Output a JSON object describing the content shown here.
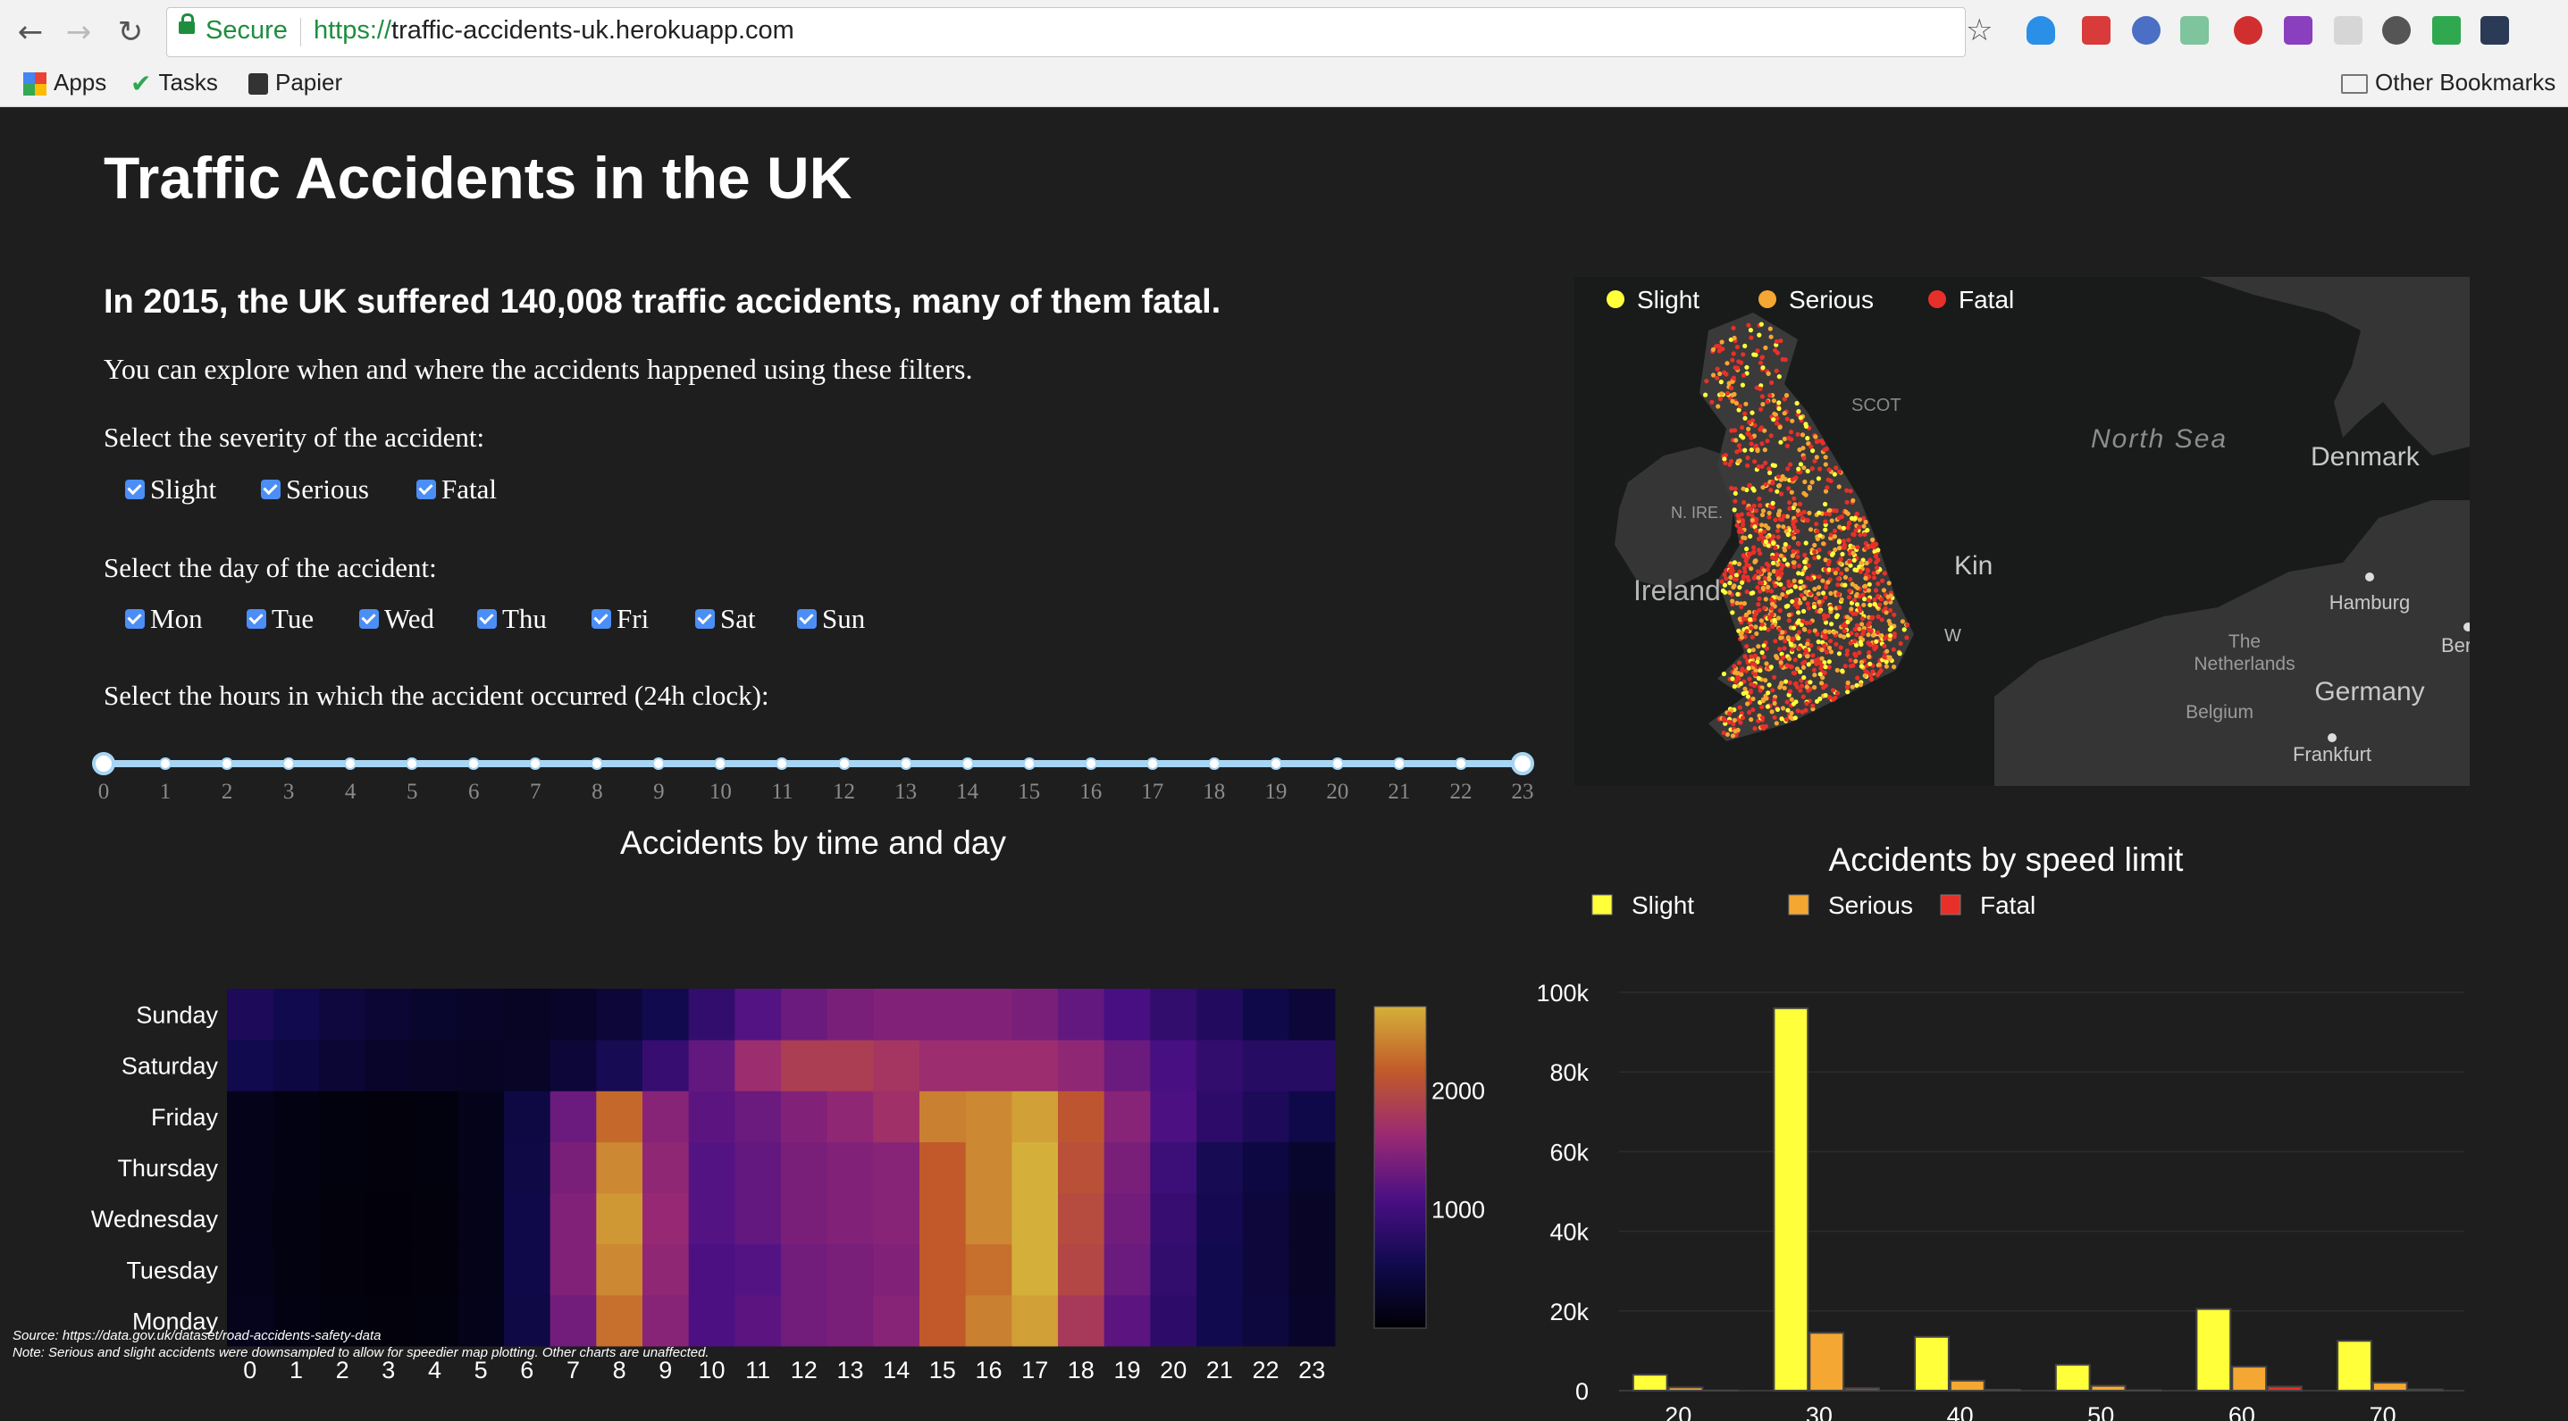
{
  "browser": {
    "secure_label": "Secure",
    "url_scheme": "https://",
    "url_host": "traffic-accidents-uk.herokuapp.com",
    "bookmarks": [
      "Apps",
      "Tasks",
      "Papier"
    ],
    "other_bookmarks": "Other Bookmarks"
  },
  "page": {
    "title": "Traffic Accidents in the UK",
    "headline": "In 2015, the UK suffered 140,008 traffic accidents, many of them fatal.",
    "intro": "You can explore when and where the accidents happened using these filters.",
    "severity_label": "Select the severity of the accident:",
    "severity_options": [
      "Slight",
      "Serious",
      "Fatal"
    ],
    "day_label": "Select the day of the accident:",
    "day_options": [
      "Mon",
      "Tue",
      "Wed",
      "Thu",
      "Fri",
      "Sat",
      "Sun"
    ],
    "hours_label": "Select the hours in which the accident occurred (24h clock):",
    "hour_marks": [
      "0",
      "1",
      "2",
      "3",
      "4",
      "5",
      "6",
      "7",
      "8",
      "9",
      "10",
      "11",
      "12",
      "13",
      "14",
      "15",
      "16",
      "17",
      "18",
      "19",
      "20",
      "21",
      "22",
      "23"
    ],
    "hour_range": [
      0,
      23
    ],
    "source_note": "Source: https://data.gov.uk/dataset/road-accidents-safety-data",
    "footnote": "Note: Serious and slight accidents were downsampled to allow for speedier map plotting. Other charts are unaffected."
  },
  "map": {
    "legend": [
      "Slight",
      "Serious",
      "Fatal"
    ],
    "colors": [
      "#ffff3a",
      "#f5a733",
      "#e8302a"
    ],
    "labels": [
      "North Sea",
      "Denmark",
      "N. IRE.",
      "Ireland",
      "Kin",
      "Hamburg",
      "The",
      "Netherlands",
      "Germany",
      "Belgium",
      "Frankfurt",
      "Ber",
      "SCOT",
      "W"
    ]
  },
  "chart_data": [
    {
      "type": "heatmap",
      "title": "Accidents by time and day",
      "x": [
        0,
        1,
        2,
        3,
        4,
        5,
        6,
        7,
        8,
        9,
        10,
        11,
        12,
        13,
        14,
        15,
        16,
        17,
        18,
        19,
        20,
        21,
        22,
        23
      ],
      "y": [
        "Monday",
        "Tuesday",
        "Wednesday",
        "Thursday",
        "Friday",
        "Saturday",
        "Sunday"
      ],
      "colorbar_ticks": [
        1000,
        2000
      ],
      "zlim": [
        0,
        2700
      ],
      "z": [
        [
          180,
          110,
          70,
          60,
          70,
          150,
          480,
          1350,
          2300,
          1500,
          1100,
          1200,
          1350,
          1400,
          1500,
          2150,
          2400,
          2600,
          1800,
          1200,
          800,
          550,
          420,
          280
        ],
        [
          150,
          90,
          60,
          50,
          60,
          140,
          500,
          1450,
          2450,
          1550,
          1100,
          1150,
          1350,
          1400,
          1450,
          2150,
          2300,
          2750,
          1950,
          1300,
          850,
          550,
          400,
          250
        ],
        [
          140,
          90,
          60,
          50,
          60,
          140,
          500,
          1450,
          2550,
          1600,
          1150,
          1250,
          1400,
          1450,
          1500,
          2150,
          2450,
          2700,
          2000,
          1350,
          900,
          580,
          400,
          250
        ],
        [
          150,
          100,
          70,
          60,
          70,
          150,
          480,
          1400,
          2450,
          1550,
          1150,
          1250,
          1400,
          1450,
          1500,
          2150,
          2450,
          2700,
          2050,
          1400,
          950,
          600,
          450,
          300
        ],
        [
          160,
          110,
          70,
          60,
          70,
          150,
          460,
          1300,
          2250,
          1500,
          1200,
          1300,
          1450,
          1550,
          1700,
          2400,
          2450,
          2600,
          2100,
          1500,
          1100,
          800,
          650,
          500
        ],
        [
          550,
          450,
          350,
          280,
          250,
          230,
          250,
          380,
          600,
          900,
          1250,
          1650,
          1850,
          1850,
          1750,
          1650,
          1650,
          1650,
          1550,
          1300,
          1050,
          850,
          750,
          750
        ],
        [
          650,
          550,
          430,
          350,
          300,
          270,
          230,
          280,
          380,
          550,
          850,
          1150,
          1300,
          1400,
          1450,
          1450,
          1450,
          1400,
          1250,
          1050,
          850,
          700,
          500,
          380
        ]
      ]
    },
    {
      "type": "bar",
      "title": "Accidents by speed limit",
      "categories": [
        20,
        30,
        40,
        50,
        60,
        70
      ],
      "x_ticks": [
        "20",
        "30",
        "40",
        "50",
        "60",
        "70"
      ],
      "y_ticks": [
        "0",
        "20k",
        "40k",
        "60k",
        "80k",
        "100k"
      ],
      "ylim": [
        0,
        100000
      ],
      "series": [
        {
          "name": "Slight",
          "color": "#ffff3a",
          "values": [
            4000,
            96000,
            13500,
            6500,
            20500,
            12500
          ]
        },
        {
          "name": "Serious",
          "color": "#f5a733",
          "values": [
            800,
            14500,
            2500,
            1200,
            6000,
            2000
          ]
        },
        {
          "name": "Fatal",
          "color": "#e8302a",
          "values": [
            50,
            600,
            200,
            100,
            1000,
            300
          ]
        }
      ]
    }
  ]
}
